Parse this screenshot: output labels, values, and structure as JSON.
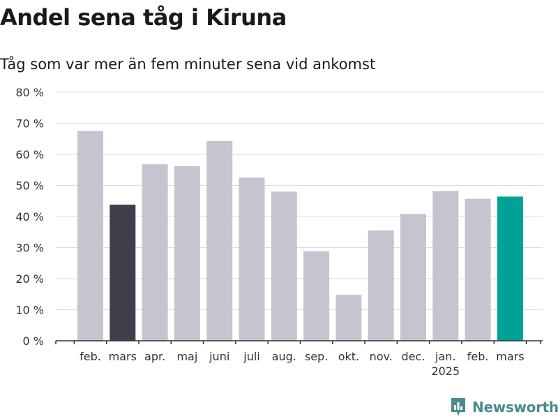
{
  "title": "Andel sena tåg i Kiruna",
  "subtitle": "Tåg som var mer än fem minuter sena vid ankomst",
  "brand": "Newsworthy",
  "colors": {
    "bar_default": "#c6c5cf",
    "bar_previous_year": "#3f3e4b",
    "bar_latest": "#00a197",
    "grid": "#dcdcdc",
    "axis": "#333333",
    "brand": "#4a8c8f"
  },
  "chart_data": {
    "type": "bar",
    "categories": [
      "feb.",
      "mars",
      "apr.",
      "maj",
      "juni",
      "juli",
      "aug.",
      "sep.",
      "okt.",
      "nov.",
      "dec.",
      "jan.",
      "feb.",
      "mars"
    ],
    "year_labels": [
      "",
      "",
      "",
      "",
      "",
      "",
      "",
      "",
      "",
      "",
      "",
      "2025",
      "",
      ""
    ],
    "values": [
      67.5,
      43.8,
      56.8,
      56.2,
      64.3,
      52.5,
      48.0,
      28.8,
      14.8,
      35.5,
      40.8,
      48.2,
      45.7,
      46.4
    ],
    "highlight": [
      "default",
      "previous_year",
      "default",
      "default",
      "default",
      "default",
      "default",
      "default",
      "default",
      "default",
      "default",
      "default",
      "default",
      "latest"
    ],
    "y_ticks": [
      0,
      10,
      20,
      30,
      40,
      50,
      60,
      70,
      80
    ],
    "y_tick_labels": [
      "0 %",
      "10 %",
      "20 %",
      "30 %",
      "40 %",
      "50 %",
      "60 %",
      "70 %",
      "80 %"
    ],
    "ylim": [
      0,
      80
    ],
    "grid": true,
    "legend": "none"
  }
}
